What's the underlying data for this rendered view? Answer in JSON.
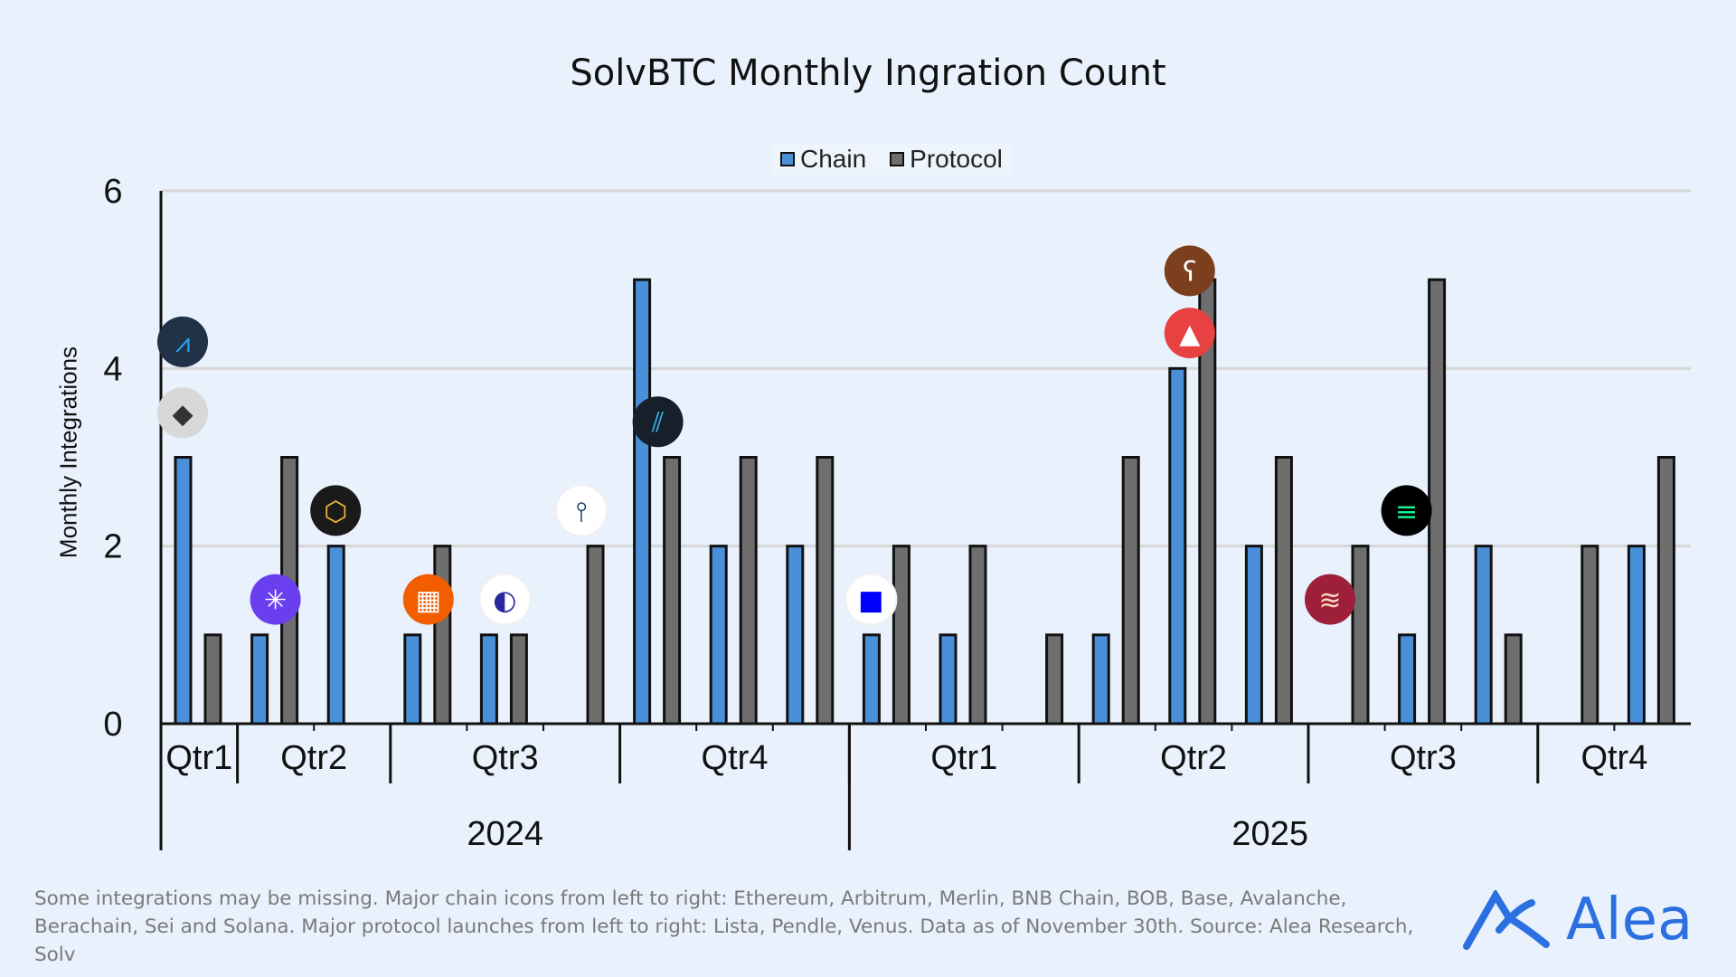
{
  "chart_data": {
    "type": "bar",
    "title": "SolvBTC Monthly Ingration Count",
    "ylabel": "Monthly Integrations",
    "xlabel": "",
    "ylim": [
      0,
      6
    ],
    "yticks": [
      0,
      2,
      4,
      6
    ],
    "grid": true,
    "legend_placement": "top-center",
    "quarters": [
      {
        "label": "Qtr1",
        "year": "2024",
        "months": 1
      },
      {
        "label": "Qtr2",
        "year": "2024",
        "months": 2
      },
      {
        "label": "Qtr3",
        "year": "2024",
        "months": 3
      },
      {
        "label": "Qtr4",
        "year": "2024",
        "months": 3
      },
      {
        "label": "Qtr1",
        "year": "2025",
        "months": 3
      },
      {
        "label": "Qtr2",
        "year": "2025",
        "months": 3
      },
      {
        "label": "Qtr3",
        "year": "2025",
        "months": 3
      },
      {
        "label": "Qtr4",
        "year": "2025",
        "months": 2
      }
    ],
    "years": [
      {
        "label": "2024",
        "months": 9
      },
      {
        "label": "2025",
        "months": 11
      }
    ],
    "series": [
      {
        "name": "Chain",
        "color": "#4a90d9",
        "values": [
          3,
          1,
          2,
          1,
          1,
          0,
          5,
          2,
          2,
          1,
          1,
          0,
          1,
          4,
          2,
          0,
          1,
          2,
          0,
          2
        ]
      },
      {
        "name": "Protocol",
        "color": "#6e6e6e",
        "values": [
          1,
          3,
          0,
          2,
          1,
          2,
          3,
          3,
          3,
          2,
          2,
          1,
          3,
          5,
          3,
          2,
          5,
          1,
          2,
          3
        ]
      }
    ],
    "annotations": [
      {
        "icon": "ethereum-icon",
        "month": 0,
        "y": 3.5,
        "bg": "#d8d8d8",
        "fg": "#333"
      },
      {
        "icon": "arbitrum-icon",
        "month": 0,
        "y": 4.3,
        "bg": "#213147",
        "fg": "#28a0f0"
      },
      {
        "icon": "merlin-icon",
        "month": 1,
        "y": 1.4,
        "bg": "#6a3ff0",
        "fg": "#ffffff"
      },
      {
        "icon": "bnb-chain-icon",
        "month": 2,
        "y": 2.4,
        "bg": "#1a1a1a",
        "fg": "#f3ba2f"
      },
      {
        "icon": "bob-icon",
        "month": 3,
        "y": 1.4,
        "bg": "#f25d00",
        "fg": "#ffffff"
      },
      {
        "icon": "base-icon",
        "month": 4,
        "y": 1.4,
        "bg": "#ffffff",
        "fg": "#2a2a9e"
      },
      {
        "icon": "lista-icon",
        "month": 5,
        "y": 2.4,
        "bg": "#ffffff",
        "fg": "#1f3f6e"
      },
      {
        "icon": "pendle-icon",
        "month": 6,
        "y": 3.4,
        "bg": "#15202b",
        "fg": "#3bb6f5"
      },
      {
        "icon": "venus-icon",
        "month": 9,
        "y": 1.4,
        "bg": "#ffffff",
        "fg": "#0000ff"
      },
      {
        "icon": "avalanche-icon",
        "month": 13,
        "y": 4.4,
        "bg": "#e84142",
        "fg": "#ffffff"
      },
      {
        "icon": "berachain-icon",
        "month": 13,
        "y": 5.1,
        "bg": "#7b3f1d",
        "fg": "#ffffff"
      },
      {
        "icon": "sei-icon",
        "month": 15,
        "y": 1.4,
        "bg": "#9e1f3a",
        "fg": "#f6d8c0"
      },
      {
        "icon": "solana-icon",
        "month": 16,
        "y": 2.4,
        "bg": "#000000",
        "fg": "#14f195"
      }
    ]
  },
  "footnote": "Some integrations may be missing. Major chain icons from left to right: Ethereum, Arbitrum, Merlin, BNB Chain, BOB, Base, Avalanche, Berachain, Sei and Solana. Major protocol launches from left to right: Lista, Pendle, Venus. Data as of November 30th. Source: Alea Research, Solv",
  "logo": {
    "text": "Alea",
    "color": "#2b6fe0"
  }
}
